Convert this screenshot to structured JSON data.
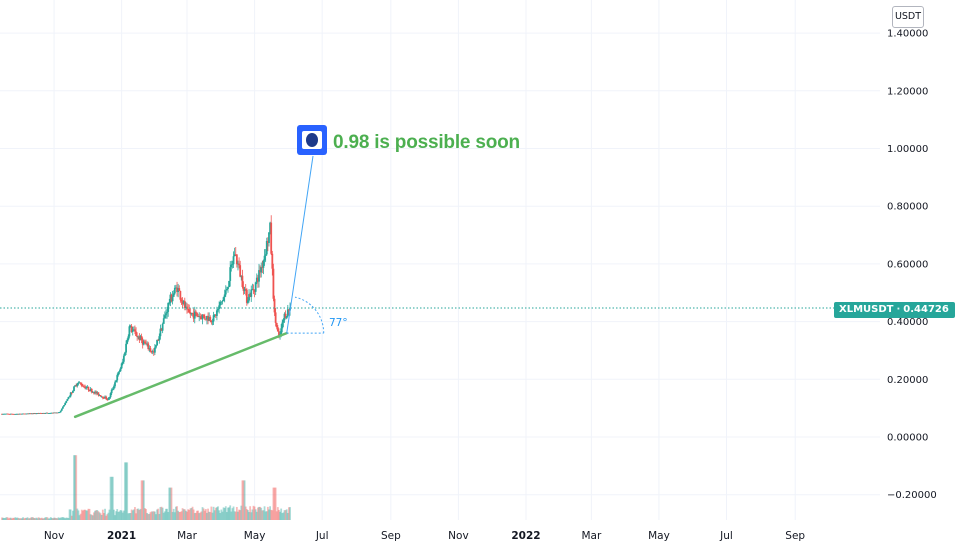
{
  "chart_data": {
    "type": "candlestick",
    "symbol": "XLMUSDT",
    "currency": "USDT",
    "last_price": "0.44726",
    "y_axis": {
      "ticks": [
        "1.40000",
        "1.20000",
        "1.00000",
        "0.80000",
        "0.60000",
        "0.40000",
        "0.20000",
        "0.00000",
        "−0.20000"
      ],
      "range": [
        -0.25,
        1.45
      ]
    },
    "x_axis": {
      "ticks": [
        "Nov",
        "2021",
        "Mar",
        "May",
        "Jul",
        "Sep",
        "Nov",
        "2022",
        "Mar",
        "May",
        "Jul",
        "Sep"
      ],
      "bold": [
        "2021",
        "2022"
      ]
    },
    "grid": true,
    "price_points": [
      {
        "date": "2020-10-01",
        "price": 0.08
      },
      {
        "date": "2020-11-06",
        "price": 0.085
      },
      {
        "date": "2020-11-22",
        "price": 0.19
      },
      {
        "date": "2020-12-05",
        "price": 0.16
      },
      {
        "date": "2020-12-20",
        "price": 0.13
      },
      {
        "date": "2021-01-02",
        "price": 0.26
      },
      {
        "date": "2021-01-08",
        "price": 0.38
      },
      {
        "date": "2021-01-30",
        "price": 0.29
      },
      {
        "date": "2021-02-13",
        "price": 0.47
      },
      {
        "date": "2021-02-20",
        "price": 0.52
      },
      {
        "date": "2021-03-01",
        "price": 0.43
      },
      {
        "date": "2021-03-25",
        "price": 0.41
      },
      {
        "date": "2021-04-05",
        "price": 0.5
      },
      {
        "date": "2021-04-13",
        "price": 0.64
      },
      {
        "date": "2021-04-24",
        "price": 0.48
      },
      {
        "date": "2021-05-01",
        "price": 0.52
      },
      {
        "date": "2021-05-08",
        "price": 0.6
      },
      {
        "date": "2021-05-15",
        "price": 0.72
      },
      {
        "date": "2021-05-19",
        "price": 0.42
      },
      {
        "date": "2021-05-23",
        "price": 0.34
      },
      {
        "date": "2021-05-28",
        "price": 0.42
      },
      {
        "date": "2021-06-02",
        "price": 0.44726
      }
    ],
    "volume_points": [
      {
        "date": "2020-11-20",
        "value": 0.9
      },
      {
        "date": "2020-12-23",
        "value": 0.6
      },
      {
        "date": "2021-01-05",
        "value": 0.8
      },
      {
        "date": "2021-01-20",
        "value": 0.55
      },
      {
        "date": "2021-02-14",
        "value": 0.45
      },
      {
        "date": "2021-04-21",
        "value": 0.55
      },
      {
        "date": "2021-05-19",
        "value": 0.45
      }
    ],
    "trendline": {
      "start": {
        "date": "2020-11-20",
        "price": 0.07
      },
      "end": {
        "date": "2021-05-30",
        "price": 0.36
      },
      "color": "#66bb6a"
    },
    "callout": {
      "text": "0.98 is possible soon",
      "color": "#4caf50"
    },
    "angle_label": "77°",
    "colors": {
      "up": "#26a69a",
      "down": "#ef5350",
      "accent": "#2962ff",
      "price_line": "#26a69a"
    }
  }
}
